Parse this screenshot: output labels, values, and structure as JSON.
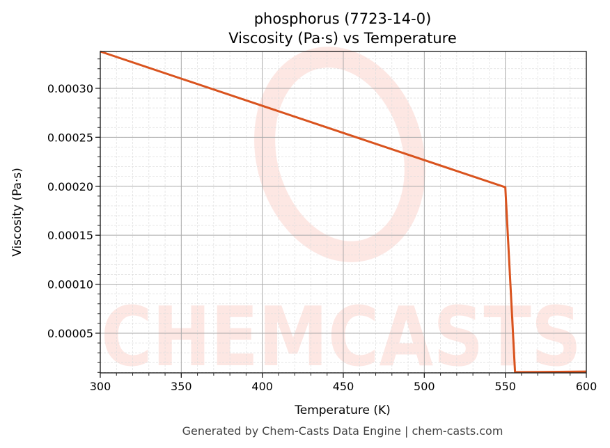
{
  "chart_data": {
    "type": "line",
    "title": "phosphorus (7723-14-0)",
    "subtitle": "Viscosity (Pa·s) vs Temperature",
    "xlabel": "Temperature (K)",
    "ylabel": "Viscosity (Pa·s)",
    "xlim": [
      300,
      600
    ],
    "ylim": [
      9.5e-06,
      0.0003376
    ],
    "x_ticks": [
      300,
      350,
      400,
      450,
      500,
      550,
      600
    ],
    "x_tick_labels": [
      "300",
      "350",
      "400",
      "450",
      "500",
      "550",
      "600"
    ],
    "y_ticks": [
      5e-05,
      0.0001,
      0.00015,
      0.0002,
      0.00025,
      0.0003
    ],
    "y_tick_labels": [
      "0.00005",
      "0.00010",
      "0.00015",
      "0.00020",
      "0.00025",
      "0.00030"
    ],
    "grid": true,
    "series": [
      {
        "color": "#d9531e",
        "x": [
          300,
          550,
          556,
          600
        ],
        "y": [
          0.0003376,
          0.000199,
          1.02e-05,
          1.08e-05
        ]
      }
    ]
  },
  "watermark": "CHEMCASTS",
  "footer": "Generated by Chem-Casts Data Engine | chem-casts.com"
}
